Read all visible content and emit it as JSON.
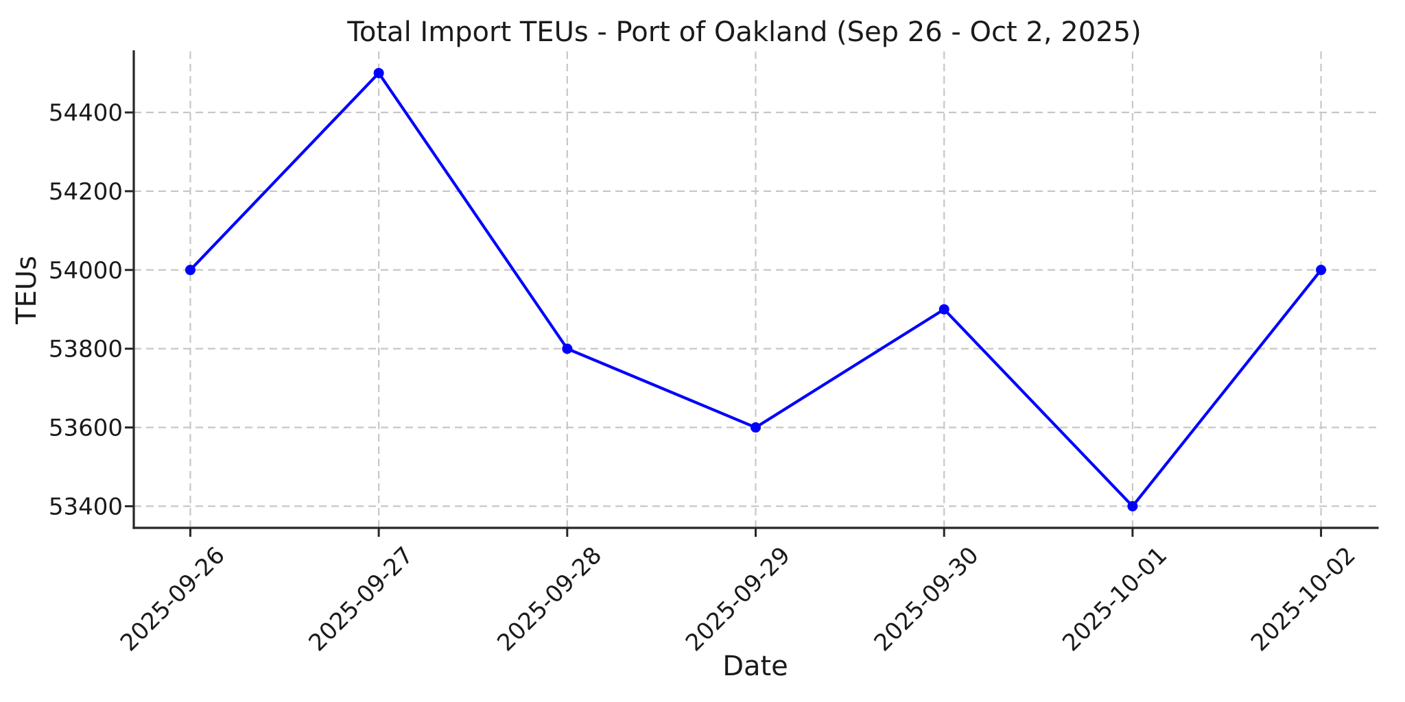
{
  "chart_data": {
    "type": "line",
    "title": "Total Import TEUs - Port of Oakland (Sep 26 - Oct 2, 2025)",
    "xlabel": "Date",
    "ylabel": "TEUs",
    "categories": [
      "2025-09-26",
      "2025-09-27",
      "2025-09-28",
      "2025-09-29",
      "2025-09-30",
      "2025-10-01",
      "2025-10-02"
    ],
    "values": [
      54000,
      54500,
      53800,
      53600,
      53900,
      53400,
      54000
    ],
    "yticks": [
      53400,
      53600,
      53800,
      54000,
      54200,
      54400
    ],
    "ylim": [
      53345,
      54555
    ],
    "grid": true,
    "grid_style": "dashed",
    "legend": "none",
    "x_tick_rotation_deg": 45,
    "marker": "circle",
    "line_color": "#0000ff",
    "marker_color": "#0000ff"
  },
  "style": {
    "background": "#ffffff",
    "grid_color": "#c7c7c7",
    "axis_color": "#262626",
    "text_color": "#1a1a1a"
  }
}
